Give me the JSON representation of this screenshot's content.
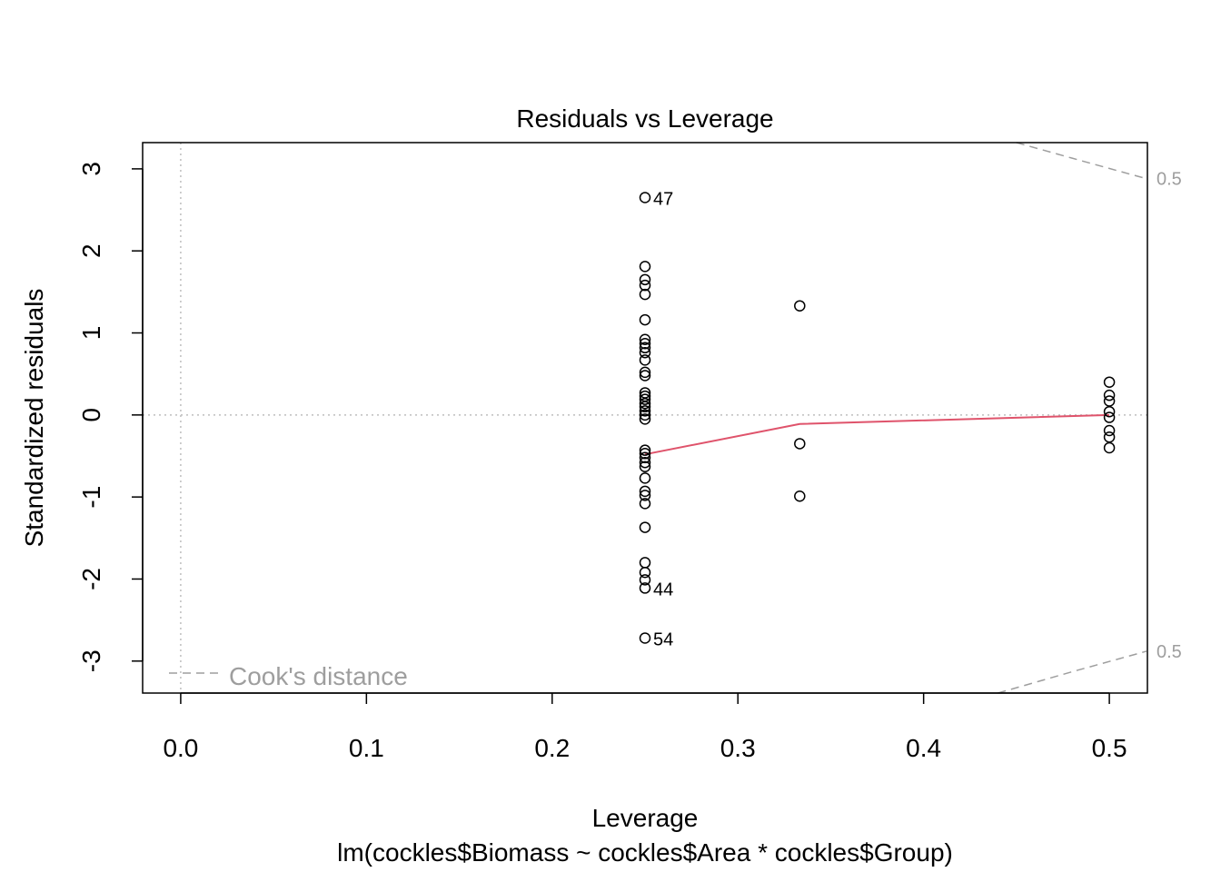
{
  "chart_data": {
    "type": "scatter",
    "title": "Residuals vs Leverage",
    "xlabel": "Leverage",
    "subtitle": "lm(cockles$Biomass ~ cockles$Area * cockles$Group)",
    "ylabel": "Standardized residuals",
    "xlim": [
      -0.0205,
      0.5205
    ],
    "ylim": [
      -3.39,
      3.32
    ],
    "x_ticks": [
      0.0,
      0.1,
      0.2,
      0.3,
      0.4,
      0.5
    ],
    "x_tick_labels": [
      "0.0",
      "0.1",
      "0.2",
      "0.3",
      "0.4",
      "0.5"
    ],
    "y_ticks": [
      -3,
      -2,
      -1,
      0,
      1,
      2,
      3
    ],
    "y_tick_labels": [
      "-3",
      "-2",
      "-1",
      "0",
      "1",
      "2",
      "3"
    ],
    "points": [
      {
        "x": 0.25,
        "y": 2.65,
        "label": "47"
      },
      {
        "x": 0.25,
        "y": 1.81
      },
      {
        "x": 0.25,
        "y": 1.65
      },
      {
        "x": 0.25,
        "y": 1.58
      },
      {
        "x": 0.25,
        "y": 1.47
      },
      {
        "x": 0.25,
        "y": 1.16
      },
      {
        "x": 0.25,
        "y": 0.92
      },
      {
        "x": 0.25,
        "y": 0.87
      },
      {
        "x": 0.25,
        "y": 0.82
      },
      {
        "x": 0.25,
        "y": 0.76
      },
      {
        "x": 0.25,
        "y": 0.67
      },
      {
        "x": 0.25,
        "y": 0.52
      },
      {
        "x": 0.25,
        "y": 0.48
      },
      {
        "x": 0.25,
        "y": 0.27
      },
      {
        "x": 0.25,
        "y": 0.23
      },
      {
        "x": 0.25,
        "y": 0.19
      },
      {
        "x": 0.25,
        "y": 0.14
      },
      {
        "x": 0.25,
        "y": 0.1
      },
      {
        "x": 0.25,
        "y": 0.05
      },
      {
        "x": 0.25,
        "y": 0.0
      },
      {
        "x": 0.25,
        "y": -0.05
      },
      {
        "x": 0.25,
        "y": -0.43
      },
      {
        "x": 0.25,
        "y": -0.47
      },
      {
        "x": 0.25,
        "y": -0.52
      },
      {
        "x": 0.25,
        "y": -0.58
      },
      {
        "x": 0.25,
        "y": -0.63
      },
      {
        "x": 0.25,
        "y": -0.77
      },
      {
        "x": 0.25,
        "y": -0.93
      },
      {
        "x": 0.25,
        "y": -0.98
      },
      {
        "x": 0.25,
        "y": -1.08
      },
      {
        "x": 0.25,
        "y": -1.37
      },
      {
        "x": 0.25,
        "y": -1.8
      },
      {
        "x": 0.25,
        "y": -1.92
      },
      {
        "x": 0.25,
        "y": -2.01
      },
      {
        "x": 0.25,
        "y": -2.11,
        "label": "44"
      },
      {
        "x": 0.25,
        "y": -2.72,
        "label": "54"
      },
      {
        "x": 0.3333,
        "y": 1.33
      },
      {
        "x": 0.3333,
        "y": -0.35
      },
      {
        "x": 0.3333,
        "y": -0.99
      },
      {
        "x": 0.5,
        "y": 0.4
      },
      {
        "x": 0.5,
        "y": 0.24
      },
      {
        "x": 0.5,
        "y": 0.17
      },
      {
        "x": 0.5,
        "y": 0.04
      },
      {
        "x": 0.5,
        "y": -0.03
      },
      {
        "x": 0.5,
        "y": -0.19
      },
      {
        "x": 0.5,
        "y": -0.27
      },
      {
        "x": 0.5,
        "y": -0.4
      }
    ],
    "smoother": [
      {
        "x": 0.25,
        "y": -0.48
      },
      {
        "x": 0.3333,
        "y": -0.11
      },
      {
        "x": 0.5,
        "y": 0.0
      }
    ],
    "cooks_contour_label": "0.5",
    "cooks_contour_upper": [
      {
        "x": 0.45,
        "y": 3.32
      },
      {
        "x": 0.48,
        "y": 3.13
      },
      {
        "x": 0.52,
        "y": 2.88
      }
    ],
    "cooks_contour_lower": [
      {
        "x": 0.44,
        "y": -3.39
      },
      {
        "x": 0.48,
        "y": -3.13
      },
      {
        "x": 0.52,
        "y": -2.88
      }
    ],
    "legend": {
      "label": "Cook's distance",
      "position": "bottom-left"
    },
    "grid": false,
    "colors": {
      "points": "#000000",
      "smoother": "#DF536B",
      "reference_lines": "#BEBEBE",
      "cook_lines": "#9E9E9E"
    }
  }
}
